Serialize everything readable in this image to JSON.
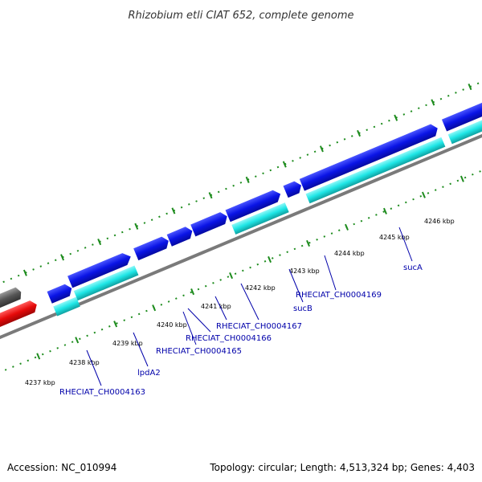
{
  "header": {
    "title": "Rhizobium etli CIAT 652, complete genome"
  },
  "footer": {
    "accession": "Accession: NC_010994",
    "summary": "Topology: circular; Length: 4,513,324 bp; Genes: 4,403"
  },
  "colors": {
    "backbone": "#777777",
    "gene_forward": "#0a14e6",
    "gene_cds": "#1ee6e6",
    "gene_highlight": "#e60a0a",
    "gene_other": "#555555",
    "tick": "#1e8c1e",
    "gene_label": "#0000aa"
  },
  "ticks": [
    {
      "label": "4237 kbp"
    },
    {
      "label": "4238 kbp"
    },
    {
      "label": "4239 kbp"
    },
    {
      "label": "4240 kbp"
    },
    {
      "label": "4241 kbp"
    },
    {
      "label": "4242 kbp"
    },
    {
      "label": "4243 kbp"
    },
    {
      "label": "4244 kbp"
    },
    {
      "label": "4245 kbp"
    },
    {
      "label": "4246 kbp"
    }
  ],
  "genes": [
    {
      "name": "RHECIAT_CH0004163"
    },
    {
      "name": "lpdA2"
    },
    {
      "name": "RHECIAT_CH0004165"
    },
    {
      "name": "RHECIAT_CH0004166"
    },
    {
      "name": "RHECIAT_CH0004167"
    },
    {
      "name": "sucB"
    },
    {
      "name": "RHECIAT_CH0004169"
    },
    {
      "name": "sucA"
    }
  ]
}
